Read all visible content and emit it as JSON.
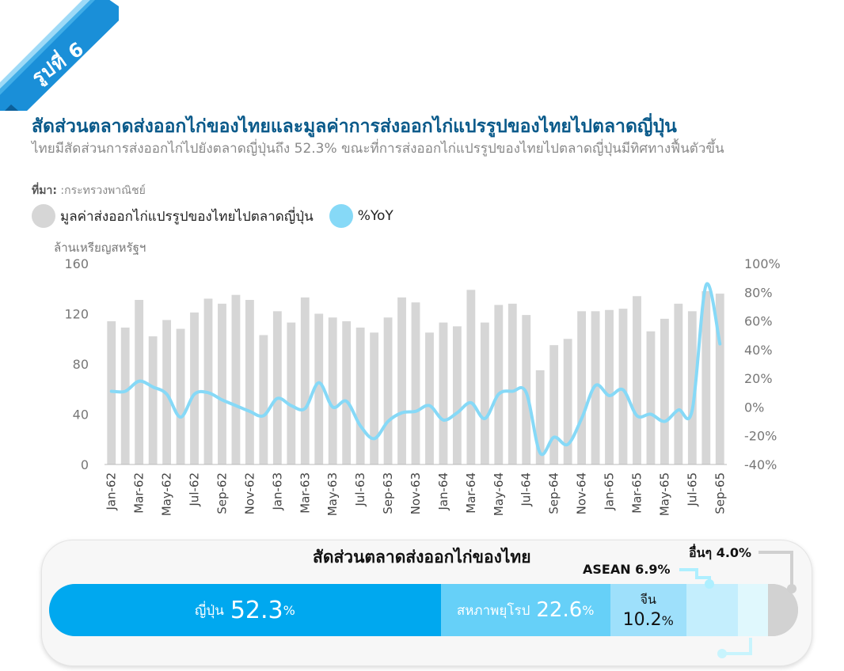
{
  "badge": {
    "label": "รูปที่ 6"
  },
  "header": {
    "title": "สัดส่วนตลาดส่งออกไก่ของไทยและมูลค่าการส่งออกไก่แปรรูปของไทยไปตลาดญี่ปุ่น",
    "subtitle": "ไทยมีสัดส่วนการส่งออกไก่ไปยังตลาดญี่ปุ่นถึง 52.3% ขณะที่การส่งออกไก่แปรรูปของไทยไปตลาดญี่ปุ่นมีทิศทางฟื้นตัวขึ้น",
    "source_label": "ที่มา:",
    "source_text": " :กระทรวงพาณิชย์"
  },
  "colors": {
    "bar": "#d6d6d6",
    "line": "#86d9f7",
    "ribbon": "#1a8fd8",
    "japan": "#00a8ef",
    "eu": "#66d0f8",
    "china": "#9ee0fb",
    "asean": "#c4eefd",
    "other": "#e0f8fd"
  },
  "chart_data": [
    {
      "type": "bar+line",
      "ylabel": "ล้านเหรียญสหรัฐฯ",
      "ylim": [
        0,
        160
      ],
      "y_ticks": [
        "0",
        "40",
        "80",
        "120",
        "160"
      ],
      "y2lim": [
        -40,
        100
      ],
      "y2_ticks": [
        "-40%",
        "-20%",
        "0%",
        "20%",
        "40%",
        "60%",
        "80%",
        "100%"
      ],
      "x": [
        "Jan-62",
        "Feb-62",
        "Mar-62",
        "Apr-62",
        "May-62",
        "Jun-62",
        "Jul-62",
        "Aug-62",
        "Sep-62",
        "Oct-62",
        "Nov-62",
        "Dec-62",
        "Jan-63",
        "Feb-63",
        "Mar-63",
        "Apr-63",
        "May-63",
        "Jun-63",
        "Jul-63",
        "Aug-63",
        "Sep-63",
        "Oct-63",
        "Nov-63",
        "Dec-63",
        "Jan-64",
        "Feb-64",
        "Mar-64",
        "Apr-64",
        "May-64",
        "Jun-64",
        "Jul-64",
        "Aug-64",
        "Sep-64",
        "Oct-64",
        "Nov-64",
        "Dec-64",
        "Jan-65",
        "Feb-65",
        "Mar-65",
        "Apr-65",
        "May-65",
        "Jun-65",
        "Jul-65",
        "Aug-65",
        "Sep-65"
      ],
      "x_tick_labels": [
        "Jan-62",
        "Mar-62",
        "May-62",
        "Jul-62",
        "Sep-62",
        "Nov-62",
        "Jan-63",
        "Mar-63",
        "May-63",
        "Jul-63",
        "Sep-63",
        "Nov-63",
        "Jan-64",
        "Mar-64",
        "May-64",
        "Jul-64",
        "Sep-64",
        "Nov-64",
        "Jan-65",
        "Mar-65",
        "May-65",
        "Jul-65",
        "Sep-65"
      ],
      "series": [
        {
          "name": "มูลค่าส่งออกไก่แปรรูปของไทยไปตลาดญี่ปุ่น",
          "type": "bar",
          "axis": "left",
          "values": [
            114,
            109,
            131,
            102,
            115,
            108,
            121,
            132,
            128,
            135,
            131,
            103,
            122,
            113,
            133,
            120,
            117,
            114,
            109,
            105,
            117,
            133,
            129,
            105,
            113,
            110,
            139,
            113,
            127,
            128,
            119,
            75,
            95,
            100,
            122,
            122,
            123,
            124,
            134,
            106,
            116,
            128,
            122,
            138,
            136
          ]
        },
        {
          "name": "%YoY",
          "type": "line",
          "axis": "right",
          "values": [
            11,
            11,
            18,
            14,
            9,
            -7,
            9,
            10,
            5,
            1,
            -3,
            -6,
            6,
            1,
            -1,
            17,
            0,
            4,
            -13,
            -22,
            -10,
            -4,
            -3,
            1,
            -9,
            -4,
            3,
            -8,
            9,
            11,
            10,
            -32,
            -21,
            -26,
            -8,
            15,
            8,
            12,
            -6,
            -5,
            -10,
            -2,
            -2,
            85,
            44
          ]
        }
      ]
    },
    {
      "type": "stacked-bar",
      "title": "สัดส่วนตลาดส่งออกไก่ของไทย",
      "categories": [
        "ญี่ปุ่น",
        "สหภาพยุโรป",
        "จีน",
        "ASEAN",
        "อื่นๆ"
      ],
      "values": [
        52.3,
        22.6,
        10.2,
        6.9,
        4.0
      ],
      "unit": "%"
    }
  ],
  "shares": {
    "japan": {
      "name": "ญี่ปุ่น",
      "value": "52.3",
      "unit": "%"
    },
    "eu": {
      "name": "สหภาพยุโรป",
      "value": "22.6",
      "unit": "%"
    },
    "china": {
      "name": "จีน",
      "value": "10.2",
      "unit": "%"
    },
    "asean": {
      "label": "ASEAN 6.9%"
    },
    "other": {
      "label": "อื่นๆ 4.0%"
    }
  }
}
